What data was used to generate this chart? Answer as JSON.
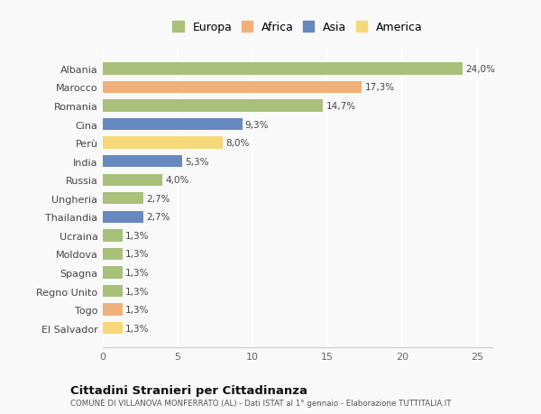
{
  "categories": [
    "Albania",
    "Marocco",
    "Romania",
    "Cina",
    "Perù",
    "India",
    "Russia",
    "Ungheria",
    "Thailandia",
    "Ucraina",
    "Moldova",
    "Spagna",
    "Regno Unito",
    "Togo",
    "El Salvador"
  ],
  "values": [
    24.0,
    17.3,
    14.7,
    9.3,
    8.0,
    5.3,
    4.0,
    2.7,
    2.7,
    1.3,
    1.3,
    1.3,
    1.3,
    1.3,
    1.3
  ],
  "labels": [
    "24,0%",
    "17,3%",
    "14,7%",
    "9,3%",
    "8,0%",
    "5,3%",
    "4,0%",
    "2,7%",
    "2,7%",
    "1,3%",
    "1,3%",
    "1,3%",
    "1,3%",
    "1,3%",
    "1,3%"
  ],
  "colors": [
    "#a8c07a",
    "#f0b07a",
    "#a8c07a",
    "#6888c0",
    "#f5d878",
    "#6888c0",
    "#a8c07a",
    "#a8c07a",
    "#6888c0",
    "#a8c07a",
    "#a8c07a",
    "#a8c07a",
    "#a8c07a",
    "#f0b07a",
    "#f5d878"
  ],
  "legend_labels": [
    "Europa",
    "Africa",
    "Asia",
    "America"
  ],
  "legend_colors": [
    "#a8c07a",
    "#f0b07a",
    "#6888c0",
    "#f5d878"
  ],
  "title": "Cittadini Stranieri per Cittadinanza",
  "subtitle": "COMUNE DI VILLANOVA MONFERRATO (AL) - Dati ISTAT al 1° gennaio - Elaborazione TUTTITALIA.IT",
  "xlim": [
    0,
    26
  ],
  "xticks": [
    0,
    5,
    10,
    15,
    20,
    25
  ],
  "background_color": "#f9f9f9",
  "grid_color": "#ffffff",
  "bar_height": 0.65
}
